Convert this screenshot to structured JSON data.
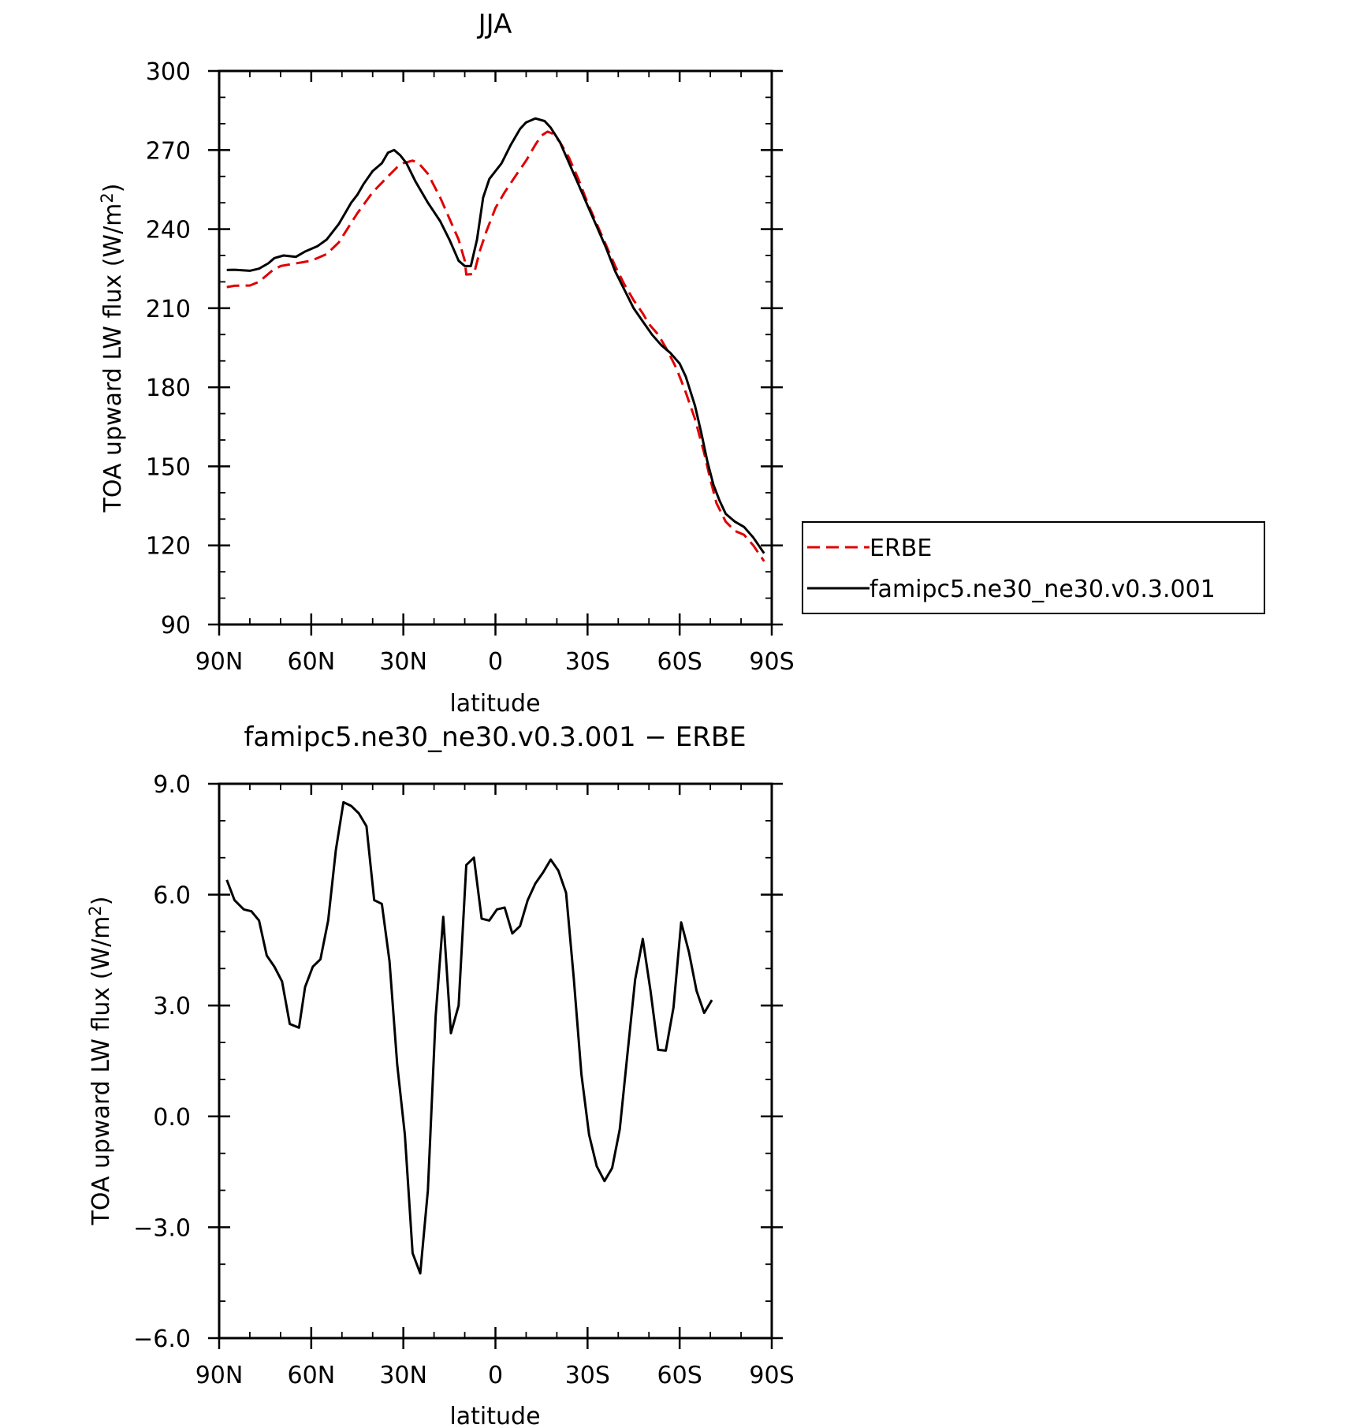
{
  "chart_data": [
    {
      "type": "line",
      "title": "JJA",
      "xlabel": "latitude",
      "ylabel": "TOA upward LW flux (W/m²)",
      "xlim": [
        90,
        -90
      ],
      "ylim": [
        90,
        300
      ],
      "yticks": [
        90,
        120,
        150,
        180,
        210,
        240,
        270,
        300
      ],
      "ytick_labels": [
        "90",
        "120",
        "150",
        "180",
        "210",
        "240",
        "270",
        "300"
      ],
      "xticks": [
        90,
        60,
        30,
        0,
        -30,
        -60,
        -90
      ],
      "xtick_labels": [
        "90N",
        "60N",
        "30N",
        "0",
        "30S",
        "60S",
        "90S"
      ],
      "legend": {
        "position": "right"
      },
      "series": [
        {
          "name": "ERBE",
          "color": "#e00000",
          "style": "dashed",
          "points": [
            [
              87.5,
              218
            ],
            [
              85,
              218.5
            ],
            [
              80,
              218.6
            ],
            [
              77,
              220
            ],
            [
              73,
              224
            ],
            [
              70,
              226
            ],
            [
              65,
              227
            ],
            [
              60,
              228
            ],
            [
              55,
              230.5
            ],
            [
              51,
              235
            ],
            [
              45,
              246
            ],
            [
              40,
              254
            ],
            [
              35,
              260
            ],
            [
              32,
              263.5
            ],
            [
              30,
              265
            ],
            [
              27,
              266
            ],
            [
              25,
              265
            ],
            [
              22,
              261
            ],
            [
              18,
              252
            ],
            [
              15,
              244
            ],
            [
              12,
              236
            ],
            [
              10,
              228
            ],
            [
              9.5,
              222.8
            ],
            [
              7,
              223
            ],
            [
              5,
              232
            ],
            [
              3,
              239
            ],
            [
              0,
              248
            ],
            [
              -3,
              254
            ],
            [
              -7,
              261
            ],
            [
              -10,
              266
            ],
            [
              -13,
              272
            ],
            [
              -15,
              275.5
            ],
            [
              -17,
              277
            ],
            [
              -19,
              276
            ],
            [
              -21,
              273
            ],
            [
              -24,
              267
            ],
            [
              -27,
              259
            ],
            [
              -30,
              250
            ],
            [
              -33,
              242
            ],
            [
              -36,
              234
            ],
            [
              -39,
              226
            ],
            [
              -42,
              219
            ],
            [
              -45,
              213
            ],
            [
              -48,
              208
            ],
            [
              -50,
              204
            ],
            [
              -53,
              200
            ],
            [
              -56,
              194
            ],
            [
              -59,
              187
            ],
            [
              -62,
              178
            ],
            [
              -65,
              168
            ],
            [
              -68,
              155
            ],
            [
              -70,
              145
            ],
            [
              -72,
              136
            ],
            [
              -75,
              129
            ],
            [
              -78,
              125.5
            ],
            [
              -81,
              124
            ],
            [
              -84,
              120
            ],
            [
              -87.5,
              114
            ]
          ]
        },
        {
          "name": "famipc5.ne30_ne30.v0.3.001",
          "color": "#000000",
          "style": "solid",
          "points": [
            [
              87.5,
              224.5
            ],
            [
              85,
              224.6
            ],
            [
              80,
              224.2
            ],
            [
              77,
              225
            ],
            [
              74,
              227
            ],
            [
              72,
              229
            ],
            [
              69,
              230
            ],
            [
              65,
              229.5
            ],
            [
              62,
              231.5
            ],
            [
              58,
              233.5
            ],
            [
              55,
              236
            ],
            [
              51,
              242
            ],
            [
              47,
              250
            ],
            [
              45,
              253
            ],
            [
              43,
              257
            ],
            [
              40,
              262
            ],
            [
              37,
              265
            ],
            [
              35,
              269
            ],
            [
              33,
              270
            ],
            [
              31,
              268
            ],
            [
              29,
              265
            ],
            [
              26,
              258
            ],
            [
              22,
              250
            ],
            [
              18,
              243
            ],
            [
              15,
              236
            ],
            [
              12,
              228
            ],
            [
              10,
              226
            ],
            [
              8,
              226
            ],
            [
              6,
              236
            ],
            [
              4,
              252
            ],
            [
              2,
              259
            ],
            [
              0,
              262
            ],
            [
              -2,
              265
            ],
            [
              -5,
              272
            ],
            [
              -8,
              278
            ],
            [
              -10,
              280.5
            ],
            [
              -13,
              282
            ],
            [
              -16,
              281
            ],
            [
              -18,
              278.5
            ],
            [
              -21,
              273
            ],
            [
              -24,
              265
            ],
            [
              -27,
              257
            ],
            [
              -30,
              249
            ],
            [
              -33,
              241
            ],
            [
              -36,
              233
            ],
            [
              -39,
              224
            ],
            [
              -42,
              217
            ],
            [
              -45,
              210
            ],
            [
              -48,
              205
            ],
            [
              -51,
              200
            ],
            [
              -54,
              196
            ],
            [
              -57,
              193
            ],
            [
              -60,
              189
            ],
            [
              -62,
              184
            ],
            [
              -65,
              173
            ],
            [
              -67,
              163
            ],
            [
              -69,
              152
            ],
            [
              -71,
              143
            ],
            [
              -73,
              137
            ],
            [
              -75,
              132
            ],
            [
              -78,
              129
            ],
            [
              -81,
              127
            ],
            [
              -84,
              123
            ],
            [
              -87.5,
              117
            ]
          ]
        }
      ]
    },
    {
      "type": "line",
      "title": "famipc5.ne30_ne30.v0.3.001 − ERBE",
      "xlabel": "latitude",
      "ylabel": "TOA upward LW flux (W/m²)",
      "xlim": [
        90,
        -90
      ],
      "ylim": [
        -6,
        9
      ],
      "yticks": [
        -6,
        -3,
        0,
        3,
        6,
        9
      ],
      "ytick_labels": [
        "−6.0",
        "−3.0",
        "0.0",
        "3.0",
        "6.0",
        "9.0"
      ],
      "xticks": [
        90,
        60,
        30,
        0,
        -30,
        -60,
        -90
      ],
      "xtick_labels": [
        "90N",
        "60N",
        "30N",
        "0",
        "30S",
        "60S",
        "90S"
      ],
      "series": [
        {
          "color": "#000000",
          "style": "solid",
          "points": [
            [
              87.5,
              6.4
            ],
            [
              85,
              5.85
            ],
            [
              82,
              5.6
            ],
            [
              79.5,
              5.55
            ],
            [
              77,
              5.3
            ],
            [
              74.5,
              4.35
            ],
            [
              72,
              4.05
            ],
            [
              69.5,
              3.65
            ],
            [
              67,
              2.5
            ],
            [
              64,
              2.4
            ],
            [
              62,
              3.5
            ],
            [
              59.5,
              4.05
            ],
            [
              57,
              4.25
            ],
            [
              54.5,
              5.3
            ],
            [
              52,
              7.2
            ],
            [
              49.5,
              8.5
            ],
            [
              47,
              8.4
            ],
            [
              44.5,
              8.2
            ],
            [
              42,
              7.85
            ],
            [
              39.5,
              5.85
            ],
            [
              37,
              5.75
            ],
            [
              34.5,
              4.2
            ],
            [
              32,
              1.4
            ],
            [
              29.5,
              -0.5
            ],
            [
              27,
              -3.7
            ],
            [
              24.5,
              -4.25
            ],
            [
              22,
              -2
            ],
            [
              19.5,
              2.7
            ],
            [
              17,
              5.4
            ],
            [
              14.5,
              2.25
            ],
            [
              12,
              3
            ],
            [
              9.5,
              6.8
            ],
            [
              7,
              7
            ],
            [
              4.5,
              5.35
            ],
            [
              2,
              5.3
            ],
            [
              -0.5,
              5.6
            ],
            [
              -3,
              5.65
            ],
            [
              -5.5,
              4.95
            ],
            [
              -8,
              5.15
            ],
            [
              -10.5,
              5.85
            ],
            [
              -13,
              6.3
            ],
            [
              -15.5,
              6.6
            ],
            [
              -18,
              6.95
            ],
            [
              -20.5,
              6.65
            ],
            [
              -23,
              6.05
            ],
            [
              -25.5,
              3.75
            ],
            [
              -28,
              1.15
            ],
            [
              -30.5,
              -0.5
            ],
            [
              -33,
              -1.35
            ],
            [
              -35.5,
              -1.75
            ],
            [
              -38,
              -1.4
            ],
            [
              -40.5,
              -0.35
            ],
            [
              -43,
              1.7
            ],
            [
              -45.5,
              3.7
            ],
            [
              -48,
              4.8
            ],
            [
              -50.5,
              3.4
            ],
            [
              -53,
              1.8
            ],
            [
              -55.5,
              1.78
            ],
            [
              -58,
              2.95
            ],
            [
              -60.5,
              5.25
            ],
            [
              -63,
              4.45
            ],
            [
              -65.5,
              3.4
            ],
            [
              -68,
              2.8
            ],
            [
              -70.5,
              3.15
            ]
          ]
        }
      ]
    }
  ]
}
